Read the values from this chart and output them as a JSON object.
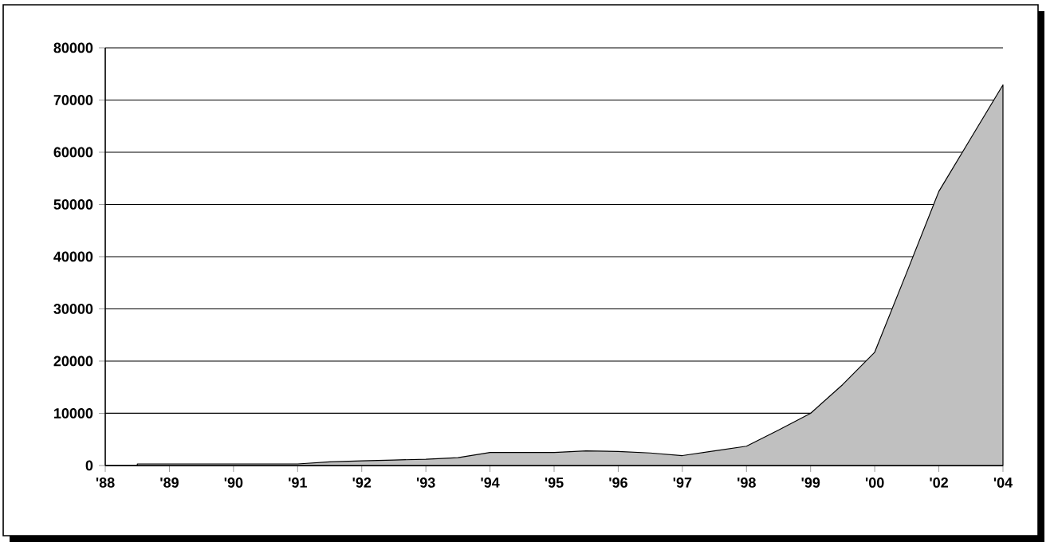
{
  "chart_data": {
    "type": "area",
    "color": "#c0c0c0",
    "categories": [
      "'88",
      null,
      "'89",
      null,
      "'90",
      null,
      "'91",
      null,
      "'92",
      null,
      "'93",
      null,
      "'94",
      null,
      "'95",
      null,
      "'96",
      null,
      "'97",
      null,
      "'98",
      null,
      "'99",
      null,
      "'00",
      null,
      "'02",
      null,
      "'04"
    ],
    "values": [
      null,
      300,
      300,
      300,
      300,
      300,
      300,
      700,
      900,
      1050,
      1200,
      1500,
      2500,
      2500,
      2500,
      2800,
      2700,
      2400,
      1900,
      2800,
      3700,
      6800,
      10000,
      15500,
      21700,
      37000,
      52500,
      62700,
      72900
    ],
    "ylim": [
      0,
      80000
    ],
    "yticks": [
      0,
      10000,
      20000,
      30000,
      40000,
      50000,
      60000,
      70000,
      80000
    ],
    "grid": "y"
  }
}
